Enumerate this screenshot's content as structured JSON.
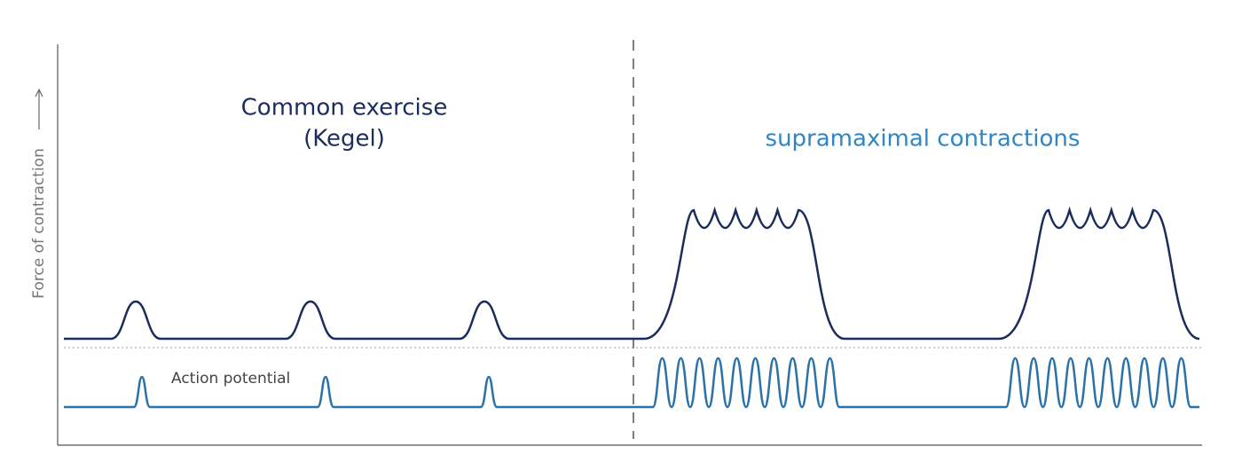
{
  "heading_left": {
    "line1": "Common exercise",
    "line2": "(Kegel)"
  },
  "heading_right": "supramaximal contractions",
  "y_axis_label": "Force of contraction",
  "trace_label": "Action potential"
}
